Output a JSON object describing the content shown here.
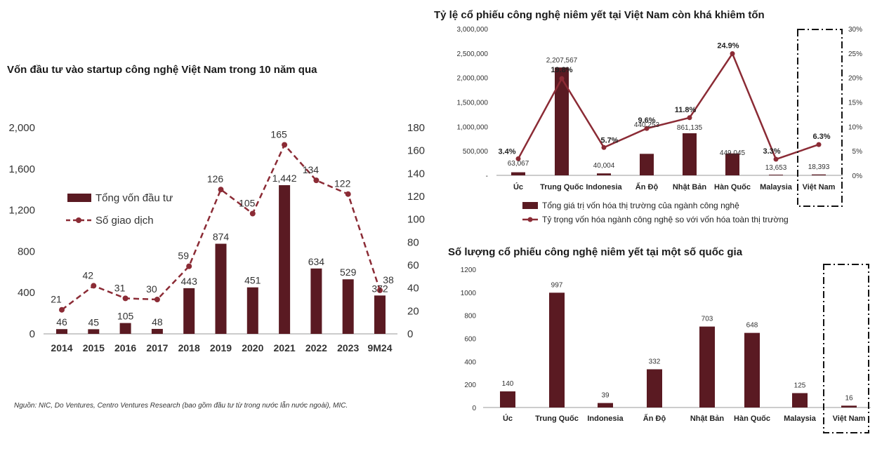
{
  "colors": {
    "bar": "#5a1a22",
    "line": "#8b2b35"
  },
  "source_note": "Nguồn: NIC, Do Ventures, Centro Ventures Research (bao gồm đầu tư từ trong nước lẫn nước ngoài), MIC.",
  "chart_data": [
    {
      "type": "bar",
      "title": "Vốn đầu tư vào startup công nghệ Việt Nam trong 10 năm qua",
      "categories": [
        "2014",
        "2015",
        "2016",
        "2017",
        "2018",
        "2019",
        "2020",
        "2021",
        "2022",
        "2023",
        "9M24"
      ],
      "series": [
        {
          "name": "Tổng vốn đầu tư",
          "type": "bar",
          "axis": "left",
          "values": [
            46,
            45,
            105,
            48,
            443,
            874,
            451,
            1442,
            634,
            529,
            372
          ],
          "labels": [
            "46",
            "45",
            "105",
            "48",
            "443",
            "874",
            "451",
            "1,442",
            "634",
            "529",
            "372"
          ]
        },
        {
          "name": "Số giao dịch",
          "type": "line",
          "style": "dashed",
          "axis": "right",
          "values": [
            21,
            42,
            31,
            30,
            59,
            126,
            105,
            165,
            134,
            122,
            38
          ],
          "labels": [
            "21",
            "42",
            "31",
            "30",
            "59",
            "126",
            "105",
            "165",
            "134",
            "122",
            "38"
          ]
        }
      ],
      "ylim": [
        0,
        2000
      ],
      "yticks": [
        "0",
        "400",
        "800",
        "1,200",
        "1,600",
        "2,000"
      ],
      "y2lim": [
        0,
        180
      ],
      "y2ticks": [
        "0",
        "20",
        "40",
        "60",
        "80",
        "100",
        "120",
        "140",
        "160",
        "180"
      ],
      "legend": "left"
    },
    {
      "type": "bar",
      "title": "Tỷ lệ cổ phiếu công nghệ niêm yết tại Việt Nam còn khá khiêm tốn",
      "categories": [
        "Úc",
        "Trung Quốc",
        "Indonesia",
        "Ấn Độ",
        "Nhật Bản",
        "Hàn Quốc",
        "Malaysia",
        "Việt Nam"
      ],
      "series": [
        {
          "name": "Tổng giá trị vốn hóa thị trường của ngành công nghệ",
          "type": "bar",
          "axis": "left",
          "values": [
            63067,
            2207567,
            40004,
            440253,
            861135,
            449045,
            13653,
            18393
          ],
          "labels": [
            "63,067",
            "2,207,567",
            "40,004",
            "440,253",
            "861,135",
            "449,045",
            "13,653",
            "18,393"
          ]
        },
        {
          "name": "Tỷ trọng vốn hóa ngành công nghệ so với vốn hóa toàn thị trường",
          "type": "line",
          "axis": "right",
          "values": [
            3.4,
            19.8,
            5.7,
            9.6,
            11.8,
            24.9,
            3.3,
            6.3
          ],
          "labels": [
            "3.4%",
            "19.8%",
            "5.7%",
            "9.6%",
            "11.8%",
            "24.9%",
            "3.3%",
            "6.3%"
          ]
        }
      ],
      "ylim": [
        0,
        3000000
      ],
      "yticks": [
        "-",
        "500,000",
        "1,000,000",
        "1,500,000",
        "2,000,000",
        "2,500,000",
        "3,000,000"
      ],
      "y2lim": [
        0,
        30
      ],
      "y2ticks": [
        "0%",
        "5%",
        "10%",
        "15%",
        "20%",
        "25%",
        "30%"
      ],
      "legend": "bottom",
      "highlight": "Việt Nam"
    },
    {
      "type": "bar",
      "title": "Số lượng cổ phiếu công nghệ niêm yết tại một số quốc gia",
      "categories": [
        "Úc",
        "Trung Quốc",
        "Indonesia",
        "Ấn Độ",
        "Nhật Bản",
        "Hàn Quốc",
        "Malaysia",
        "Việt Nam"
      ],
      "values": [
        140,
        997,
        39,
        332,
        703,
        648,
        125,
        16
      ],
      "labels": [
        "140",
        "997",
        "39",
        "332",
        "703",
        "648",
        "125",
        "16"
      ],
      "ylim": [
        0,
        1200
      ],
      "yticks": [
        "0",
        "200",
        "400",
        "600",
        "800",
        "1000",
        "1200"
      ],
      "highlight": "Việt Nam"
    }
  ]
}
